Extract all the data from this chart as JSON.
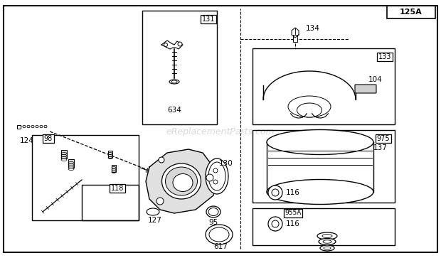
{
  "watermark": "eReplacementParts.com",
  "bg_color": "#ffffff",
  "page_label": "125A"
}
